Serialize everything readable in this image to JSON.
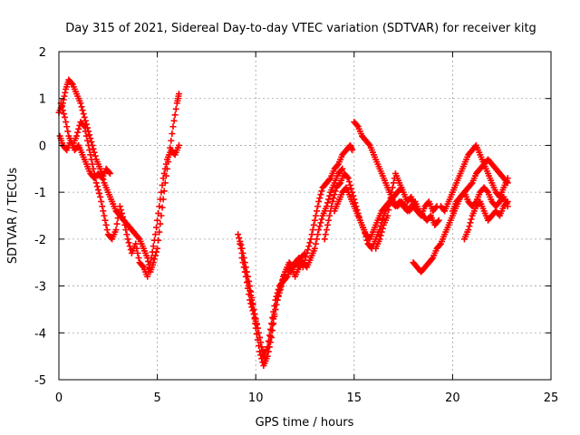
{
  "chart_data": {
    "type": "scatter",
    "title": "Day 315 of 2021, Sidereal Day-to-day VTEC variation (SDTVAR) for receiver kitg",
    "xlabel": "GPS time / hours",
    "ylabel": "SDTVAR / TECUs",
    "xlim": [
      0,
      25
    ],
    "ylim": [
      -5,
      2
    ],
    "xticks": [
      0,
      5,
      10,
      15,
      20,
      25
    ],
    "yticks": [
      -5,
      -4,
      -3,
      -2,
      -1,
      0,
      1,
      2
    ],
    "grid": true,
    "marker": "plus",
    "color": "#ff0000",
    "series": [
      {
        "points": [
          [
            0.0,
            0.7
          ],
          [
            0.2,
            0.9
          ],
          [
            0.35,
            1.2
          ],
          [
            0.5,
            1.4
          ],
          [
            0.7,
            1.3
          ],
          [
            0.9,
            1.1
          ],
          [
            1.1,
            0.9
          ],
          [
            1.3,
            0.6
          ],
          [
            1.5,
            0.3
          ],
          [
            1.7,
            0.0
          ],
          [
            1.9,
            -0.3
          ],
          [
            2.1,
            -0.5
          ],
          [
            2.3,
            -0.8
          ],
          [
            2.5,
            -1.0
          ],
          [
            2.7,
            -1.2
          ],
          [
            2.9,
            -1.4
          ],
          [
            3.1,
            -1.5
          ],
          [
            3.3,
            -1.6
          ],
          [
            3.5,
            -1.7
          ],
          [
            3.7,
            -1.8
          ],
          [
            3.9,
            -1.9
          ],
          [
            4.1,
            -2.0
          ],
          [
            4.3,
            -2.2
          ],
          [
            4.5,
            -2.4
          ],
          [
            4.65,
            -2.7
          ],
          [
            4.8,
            -2.5
          ],
          [
            5.0,
            -2.2
          ],
          [
            5.2,
            -1.5
          ],
          [
            5.4,
            -0.8
          ],
          [
            5.6,
            -0.2
          ],
          [
            5.8,
            0.4
          ],
          [
            6.0,
            0.9
          ],
          [
            6.1,
            1.1
          ]
        ]
      },
      {
        "points": [
          [
            0.1,
            0.9
          ],
          [
            0.3,
            0.6
          ],
          [
            0.5,
            0.2
          ],
          [
            0.7,
            0.0
          ],
          [
            0.9,
            0.2
          ],
          [
            1.1,
            0.5
          ],
          [
            1.3,
            0.4
          ],
          [
            1.5,
            0.0
          ],
          [
            1.7,
            -0.4
          ],
          [
            1.9,
            -0.8
          ],
          [
            2.1,
            -1.1
          ],
          [
            2.3,
            -1.5
          ],
          [
            2.5,
            -1.9
          ],
          [
            2.7,
            -2.0
          ],
          [
            2.9,
            -1.8
          ],
          [
            3.1,
            -1.3
          ],
          [
            3.3,
            -1.6
          ],
          [
            3.5,
            -2.0
          ],
          [
            3.7,
            -2.3
          ],
          [
            3.9,
            -2.1
          ],
          [
            4.1,
            -2.5
          ],
          [
            4.3,
            -2.6
          ],
          [
            4.5,
            -2.8
          ],
          [
            4.7,
            -2.4
          ],
          [
            4.9,
            -1.9
          ],
          [
            5.1,
            -1.3
          ],
          [
            5.3,
            -0.7
          ],
          [
            5.5,
            -0.3
          ],
          [
            5.7,
            -0.1
          ],
          [
            5.9,
            -0.2
          ],
          [
            6.1,
            0.0
          ]
        ]
      },
      {
        "points": [
          [
            0.05,
            0.2
          ],
          [
            0.2,
            0.0
          ],
          [
            0.4,
            -0.1
          ],
          [
            0.6,
            0.1
          ],
          [
            0.8,
            -0.1
          ],
          [
            1.0,
            0.0
          ],
          [
            1.2,
            -0.2
          ],
          [
            1.4,
            -0.4
          ],
          [
            1.6,
            -0.6
          ],
          [
            1.8,
            -0.7
          ],
          [
            2.0,
            -0.6
          ],
          [
            2.2,
            -0.7
          ],
          [
            2.4,
            -0.5
          ],
          [
            2.6,
            -0.6
          ]
        ]
      },
      {
        "points": [
          [
            9.1,
            -1.9
          ],
          [
            9.3,
            -2.2
          ],
          [
            9.5,
            -2.6
          ],
          [
            9.7,
            -3.0
          ],
          [
            9.9,
            -3.5
          ],
          [
            10.0,
            -3.9
          ],
          [
            10.2,
            -4.4
          ],
          [
            10.4,
            -4.7
          ],
          [
            10.6,
            -4.5
          ],
          [
            10.8,
            -4.1
          ],
          [
            11.0,
            -3.5
          ],
          [
            11.2,
            -3.1
          ],
          [
            11.4,
            -2.8
          ],
          [
            11.6,
            -2.6
          ],
          [
            11.8,
            -2.7
          ],
          [
            12.0,
            -2.5
          ],
          [
            12.2,
            -2.4
          ],
          [
            12.4,
            -2.6
          ],
          [
            12.6,
            -2.3
          ],
          [
            12.8,
            -2.0
          ],
          [
            13.0,
            -1.6
          ],
          [
            13.2,
            -1.2
          ],
          [
            13.4,
            -0.9
          ],
          [
            13.6,
            -0.8
          ],
          [
            13.8,
            -0.7
          ],
          [
            14.0,
            -0.5
          ],
          [
            14.2,
            -0.4
          ],
          [
            14.4,
            -0.2
          ],
          [
            14.6,
            -0.1
          ],
          [
            14.8,
            0.0
          ],
          [
            14.9,
            -0.1
          ]
        ]
      },
      {
        "points": [
          [
            9.2,
            -2.1
          ],
          [
            9.4,
            -2.5
          ],
          [
            9.6,
            -2.9
          ],
          [
            9.8,
            -3.3
          ],
          [
            10.0,
            -3.7
          ],
          [
            10.2,
            -4.1
          ],
          [
            10.4,
            -4.5
          ],
          [
            10.6,
            -4.3
          ],
          [
            10.8,
            -3.8
          ],
          [
            11.0,
            -3.3
          ],
          [
            11.2,
            -3.0
          ],
          [
            11.4,
            -2.9
          ],
          [
            11.6,
            -2.8
          ],
          [
            11.8,
            -2.6
          ],
          [
            12.0,
            -2.8
          ],
          [
            12.2,
            -2.6
          ],
          [
            12.4,
            -2.5
          ],
          [
            12.6,
            -2.6
          ],
          [
            12.8,
            -2.4
          ],
          [
            13.0,
            -2.2
          ],
          [
            13.2,
            -1.8
          ],
          [
            13.4,
            -1.5
          ],
          [
            13.6,
            -1.3
          ],
          [
            13.8,
            -1.0
          ],
          [
            14.0,
            -0.8
          ],
          [
            14.2,
            -0.6
          ],
          [
            14.4,
            -0.5
          ]
        ]
      },
      {
        "points": [
          [
            9.3,
            -2.4
          ],
          [
            9.5,
            -2.8
          ],
          [
            9.7,
            -3.3
          ],
          [
            9.9,
            -3.6
          ],
          [
            10.1,
            -3.9
          ],
          [
            10.3,
            -4.3
          ],
          [
            10.5,
            -4.6
          ],
          [
            10.7,
            -4.2
          ],
          [
            10.9,
            -3.7
          ],
          [
            11.1,
            -3.3
          ],
          [
            11.3,
            -3.0
          ],
          [
            11.5,
            -2.7
          ],
          [
            11.7,
            -2.5
          ],
          [
            11.9,
            -2.6
          ],
          [
            12.1,
            -2.5
          ],
          [
            12.3,
            -2.4
          ],
          [
            12.5,
            -2.3
          ]
        ]
      },
      {
        "points": [
          [
            13.5,
            -2.0
          ],
          [
            13.7,
            -1.6
          ],
          [
            13.9,
            -1.2
          ],
          [
            14.1,
            -0.9
          ],
          [
            14.3,
            -0.8
          ],
          [
            14.5,
            -0.6
          ],
          [
            14.7,
            -0.7
          ],
          [
            14.9,
            -1.0
          ],
          [
            15.1,
            -1.3
          ],
          [
            15.3,
            -1.6
          ],
          [
            15.5,
            -1.8
          ],
          [
            15.7,
            -2.1
          ],
          [
            15.9,
            -2.2
          ],
          [
            16.1,
            -2.0
          ],
          [
            16.3,
            -1.8
          ],
          [
            16.5,
            -1.5
          ],
          [
            16.7,
            -1.3
          ],
          [
            16.9,
            -1.2
          ],
          [
            17.1,
            -1.3
          ],
          [
            17.3,
            -1.2
          ],
          [
            17.5,
            -1.3
          ],
          [
            17.7,
            -1.4
          ],
          [
            17.9,
            -1.3
          ],
          [
            18.1,
            -1.2
          ],
          [
            18.3,
            -1.4
          ],
          [
            18.5,
            -1.5
          ],
          [
            18.7,
            -1.6
          ],
          [
            18.9,
            -1.5
          ],
          [
            19.1,
            -1.7
          ],
          [
            19.3,
            -1.6
          ]
        ]
      },
      {
        "points": [
          [
            14.0,
            -1.4
          ],
          [
            14.2,
            -1.2
          ],
          [
            14.4,
            -1.0
          ],
          [
            14.6,
            -0.9
          ],
          [
            14.8,
            -1.1
          ],
          [
            15.0,
            -1.3
          ],
          [
            15.2,
            -1.5
          ],
          [
            15.4,
            -1.7
          ],
          [
            15.6,
            -1.9
          ],
          [
            15.8,
            -2.0
          ],
          [
            16.0,
            -1.8
          ],
          [
            16.2,
            -1.6
          ],
          [
            16.4,
            -1.4
          ],
          [
            16.6,
            -1.3
          ],
          [
            16.8,
            -1.2
          ],
          [
            17.0,
            -1.1
          ],
          [
            17.2,
            -1.0
          ],
          [
            17.4,
            -0.9
          ]
        ]
      },
      {
        "points": [
          [
            15.0,
            0.5
          ],
          [
            15.2,
            0.4
          ],
          [
            15.4,
            0.2
          ],
          [
            15.6,
            0.1
          ],
          [
            15.8,
            0.0
          ],
          [
            16.0,
            -0.2
          ],
          [
            16.2,
            -0.4
          ],
          [
            16.4,
            -0.6
          ],
          [
            16.6,
            -0.8
          ],
          [
            16.8,
            -1.0
          ],
          [
            17.0,
            -1.2
          ],
          [
            17.2,
            -1.3
          ],
          [
            17.4,
            -1.2
          ],
          [
            17.6,
            -1.3
          ],
          [
            17.8,
            -1.4
          ],
          [
            18.0,
            -1.3
          ],
          [
            18.2,
            -1.4
          ],
          [
            18.4,
            -1.5
          ],
          [
            18.6,
            -1.3
          ],
          [
            18.8,
            -1.2
          ],
          [
            19.0,
            -1.4
          ],
          [
            19.2,
            -1.3
          ]
        ]
      },
      {
        "points": [
          [
            16.1,
            -2.2
          ],
          [
            16.3,
            -2.0
          ],
          [
            16.5,
            -1.7
          ],
          [
            16.7,
            -1.5
          ],
          [
            16.9,
            -1.0
          ],
          [
            17.1,
            -0.6
          ],
          [
            17.3,
            -0.8
          ],
          [
            17.5,
            -1.0
          ],
          [
            17.7,
            -1.2
          ],
          [
            17.9,
            -1.1
          ],
          [
            18.1,
            -1.3
          ]
        ]
      },
      {
        "points": [
          [
            18.0,
            -2.5
          ],
          [
            18.2,
            -2.6
          ],
          [
            18.4,
            -2.7
          ],
          [
            18.6,
            -2.6
          ],
          [
            18.8,
            -2.5
          ],
          [
            19.0,
            -2.4
          ],
          [
            19.2,
            -2.2
          ],
          [
            19.4,
            -2.1
          ],
          [
            19.6,
            -1.9
          ],
          [
            19.8,
            -1.7
          ],
          [
            20.0,
            -1.5
          ],
          [
            20.2,
            -1.3
          ],
          [
            20.4,
            -1.1
          ],
          [
            20.6,
            -1.0
          ],
          [
            20.8,
            -0.9
          ],
          [
            21.0,
            -0.8
          ],
          [
            21.2,
            -0.6
          ],
          [
            21.4,
            -0.5
          ],
          [
            21.6,
            -0.4
          ],
          [
            21.8,
            -0.3
          ],
          [
            22.0,
            -0.4
          ],
          [
            22.2,
            -0.5
          ],
          [
            22.4,
            -0.6
          ],
          [
            22.6,
            -0.7
          ],
          [
            22.8,
            -0.8
          ]
        ]
      },
      {
        "points": [
          [
            19.4,
            -1.3
          ],
          [
            19.6,
            -1.4
          ],
          [
            19.8,
            -1.2
          ],
          [
            20.0,
            -1.0
          ],
          [
            20.2,
            -0.8
          ],
          [
            20.4,
            -0.6
          ],
          [
            20.6,
            -0.4
          ],
          [
            20.8,
            -0.2
          ],
          [
            21.0,
            -0.1
          ],
          [
            21.2,
            0.0
          ],
          [
            21.4,
            -0.2
          ],
          [
            21.6,
            -0.4
          ],
          [
            21.8,
            -0.6
          ],
          [
            22.0,
            -0.8
          ],
          [
            22.2,
            -1.0
          ],
          [
            22.4,
            -1.1
          ],
          [
            22.6,
            -0.9
          ],
          [
            22.8,
            -0.7
          ]
        ]
      },
      {
        "points": [
          [
            20.6,
            -2.0
          ],
          [
            20.8,
            -1.8
          ],
          [
            21.0,
            -1.5
          ],
          [
            21.2,
            -1.3
          ],
          [
            21.4,
            -1.2
          ],
          [
            21.6,
            -1.4
          ],
          [
            21.8,
            -1.6
          ],
          [
            22.0,
            -1.5
          ],
          [
            22.2,
            -1.4
          ],
          [
            22.4,
            -1.5
          ],
          [
            22.6,
            -1.3
          ],
          [
            22.8,
            -1.2
          ]
        ]
      },
      {
        "points": [
          [
            20.0,
            -1.4
          ],
          [
            20.2,
            -1.2
          ],
          [
            20.4,
            -1.1
          ],
          [
            20.6,
            -1.0
          ],
          [
            20.8,
            -1.2
          ],
          [
            21.0,
            -1.3
          ],
          [
            21.2,
            -1.2
          ],
          [
            21.4,
            -1.0
          ],
          [
            21.6,
            -0.9
          ],
          [
            21.8,
            -1.0
          ],
          [
            22.0,
            -1.2
          ],
          [
            22.2,
            -1.3
          ],
          [
            22.4,
            -1.2
          ],
          [
            22.6,
            -1.1
          ],
          [
            22.8,
            -1.3
          ]
        ]
      }
    ]
  }
}
